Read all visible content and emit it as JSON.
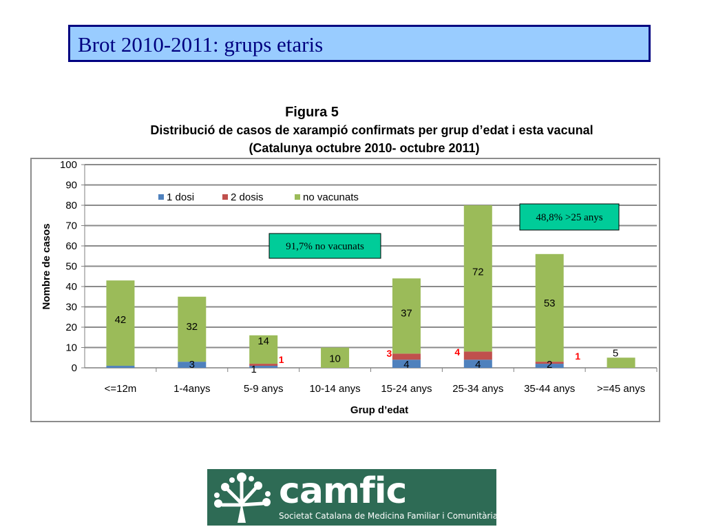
{
  "slide": {
    "title": "Brot 2010-2011: grups etaris"
  },
  "figure": {
    "number": "Figura 5",
    "description": "Distribució de casos de xarampió confirmats per  grup d’edat i esta vacunal",
    "period": "(Catalunya octubre 2010- octubre 2011)"
  },
  "chart_data": {
    "type": "bar",
    "stacked": true,
    "ylabel": "Nombre de casos",
    "xlabel": "Grup d’edat",
    "ylim": [
      0,
      100
    ],
    "yticks": [
      0,
      10,
      20,
      30,
      40,
      50,
      60,
      70,
      80,
      90,
      100
    ],
    "grid": true,
    "legend_position": "top",
    "categories": [
      "<=12m",
      "1-4anys",
      "5-9 anys",
      "10-14 anys",
      "15-24 anys",
      "25-34 anys",
      "35-44 anys",
      ">=45 anys"
    ],
    "series": [
      {
        "name": "1 dosi",
        "color": "#4f81bd",
        "values": [
          1,
          3,
          1,
          0,
          4,
          4,
          2,
          0
        ]
      },
      {
        "name": "2 dosis",
        "color": "#c0504d",
        "values": [
          0,
          0,
          1,
          0,
          3,
          4,
          1,
          0
        ]
      },
      {
        "name": "no vacunats",
        "color": "#9bbb59",
        "values": [
          42,
          32,
          14,
          10,
          37,
          72,
          53,
          5
        ]
      }
    ],
    "data_labels": {
      "1 dosi": [
        "",
        "3",
        "1",
        "",
        "4",
        "4",
        "2",
        ""
      ],
      "2 dosis": [
        "",
        "",
        "1",
        "",
        "3",
        "4",
        "1",
        ""
      ],
      "no vacunats": [
        "42",
        "32",
        "14",
        "10",
        "37",
        "72",
        "53",
        "5"
      ]
    },
    "annotations": [
      {
        "text": "91,7% no vacunats",
        "fill": "#00cc99"
      },
      {
        "text": "48,8% >25 anys",
        "fill": "#00cc99"
      }
    ]
  },
  "logo": {
    "name": "camfic",
    "subtitle": "Societat Catalana de Medicina Familiar i Comunitària"
  }
}
